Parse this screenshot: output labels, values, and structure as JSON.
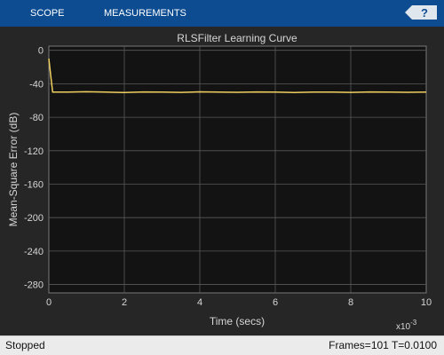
{
  "toolstrip": {
    "tabs": [
      {
        "label": "SCOPE"
      },
      {
        "label": "MEASUREMENTS"
      }
    ],
    "help_icon": "help-question-icon"
  },
  "status_bar": {
    "state": "Stopped",
    "frames_info": "Frames=101  T=0.0100"
  },
  "colors": {
    "toolstrip": "#0e4c92",
    "plot_background": "#131313",
    "figure_background": "#262626",
    "trace": "#f0d060",
    "grid": "#5a5a5a",
    "text": "#d6d6d6"
  },
  "chart_data": {
    "type": "line",
    "title": "RLSFilter Learning Curve",
    "xlabel": "Time (secs)",
    "ylabel": "Mean-Square Error (dB)",
    "x_multiplier_label": "x10",
    "x_multiplier_exp": "-3",
    "xlim": [
      0,
      10
    ],
    "ylim": [
      -290,
      5
    ],
    "x_ticks": [
      0,
      2,
      4,
      6,
      8,
      10
    ],
    "y_ticks": [
      0,
      -40,
      -80,
      -120,
      -160,
      -200,
      -240,
      -280
    ],
    "grid": true,
    "series": [
      {
        "x": [
          0,
          0.05,
          0.1,
          0.5,
          1.0,
          1.5,
          2.0,
          2.5,
          3.0,
          3.5,
          4.0,
          4.5,
          5.0,
          5.5,
          6.0,
          6.5,
          7.0,
          7.5,
          8.0,
          8.5,
          9.0,
          9.5,
          10.0
        ],
        "y": [
          -10,
          -30,
          -50,
          -50,
          -49.5,
          -50,
          -50.5,
          -49.8,
          -50,
          -50.3,
          -49.7,
          -50,
          -50.2,
          -49.8,
          -50,
          -50.4,
          -49.9,
          -50,
          -50.3,
          -49.8,
          -50,
          -50.2,
          -50
        ]
      }
    ]
  }
}
